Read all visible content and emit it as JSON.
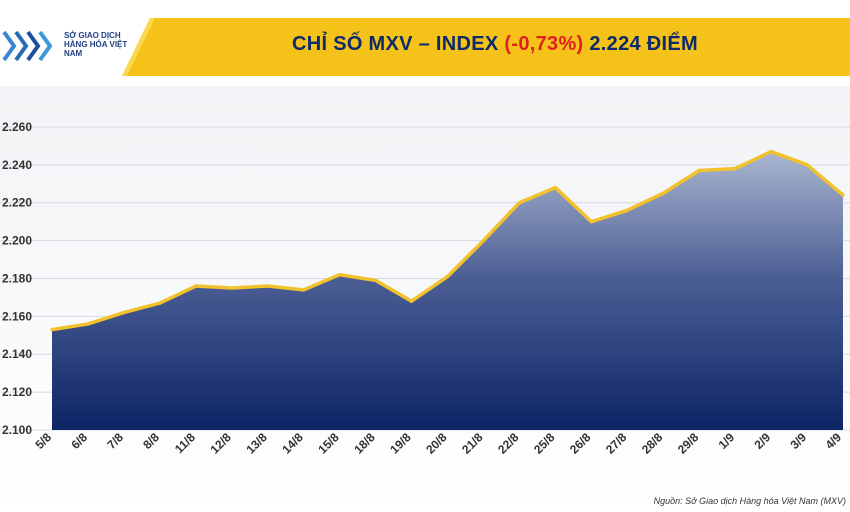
{
  "header": {
    "logo_text": "SỞ GIAO DỊCH HÀNG HÓA VIỆT NAM",
    "title_prefix": "CHỈ SỐ MXV – INDEX",
    "title_change": "(-0,73%)",
    "title_suffix": "2.224 ĐIỂM"
  },
  "footer": {
    "source_label": "Nguồn:",
    "source_text": "Sở Giao dịch Hàng hóa Việt Nam (MXV)"
  },
  "colors": {
    "banner_yellow": "#f5c21a",
    "line_yellow": "#f2c22c",
    "area_top": "#aab6d0",
    "area_bottom": "#0d2466",
    "title_navy": "#0d2a6b",
    "change_red": "#e02020"
  },
  "chart_data": {
    "type": "area",
    "title": "CHỈ SỐ MXV – INDEX (-0,73%) 2.224 ĐIỂM",
    "xlabel": "",
    "ylabel": "",
    "ylim": [
      2100,
      2270
    ],
    "yticks": [
      2100,
      2120,
      2140,
      2160,
      2180,
      2200,
      2220,
      2240,
      2260
    ],
    "ytick_labels": [
      "2.100",
      "2.120",
      "2.140",
      "2.160",
      "2.180",
      "2.200",
      "2.220",
      "2.240",
      "2.260"
    ],
    "grid": true,
    "categories": [
      "5/8",
      "6/8",
      "7/8",
      "8/8",
      "11/8",
      "12/8",
      "13/8",
      "14/8",
      "15/8",
      "18/8",
      "19/8",
      "20/8",
      "21/8",
      "22/8",
      "25/8",
      "26/8",
      "27/8",
      "28/8",
      "29/8",
      "1/9",
      "2/9",
      "3/9",
      "4/9"
    ],
    "values": [
      2153,
      2156,
      2162,
      2167,
      2176,
      2175,
      2176,
      2174,
      2182,
      2179,
      2168,
      2181,
      2200,
      2220,
      2228,
      2210,
      2216,
      2225,
      2237,
      2238,
      2247,
      2240,
      2224
    ]
  }
}
